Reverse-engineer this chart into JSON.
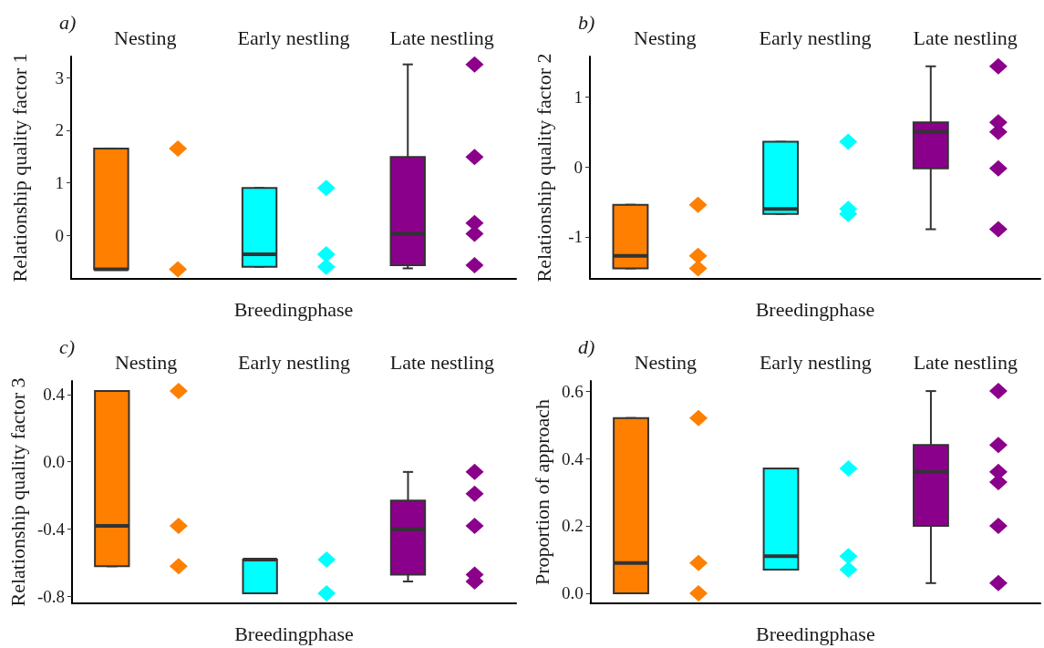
{
  "chart_data": [
    {
      "type": "box",
      "title": "a)",
      "xlabel": "Breedingphase",
      "ylabel": "Relationship quality factor 1",
      "categories": [
        "Nesting",
        "Early nestling",
        "Late nestling"
      ],
      "ylim": [
        -0.83,
        3.4
      ],
      "yticks": [
        0,
        1,
        2,
        3
      ],
      "series": [
        {
          "type": "box",
          "colors": [
            "#ff7f00",
            "#00ffff",
            "#8b008b"
          ],
          "boxes": [
            {
              "low": -0.65,
              "q1": -0.65,
              "median": -0.65,
              "q3": 1.65,
              "high": 1.65
            },
            {
              "low": -0.6,
              "q1": -0.6,
              "median": -0.36,
              "q3": 0.9,
              "high": 0.9
            },
            {
              "low": -0.63,
              "q1": -0.57,
              "median": 0.03,
              "q3": 1.49,
              "high": 3.25
            }
          ]
        },
        {
          "type": "scatter",
          "marker": "diamond",
          "x": [
            "Nesting",
            "Nesting",
            "Early nestling",
            "Early nestling",
            "Early nestling",
            "Late nestling",
            "Late nestling",
            "Late nestling",
            "Late nestling",
            "Late nestling"
          ],
          "values": [
            1.65,
            -0.65,
            0.9,
            -0.36,
            -0.6,
            3.25,
            1.49,
            0.23,
            0.03,
            -0.57
          ],
          "colors": [
            "#ff7f00",
            "#ff7f00",
            "#00ffff",
            "#00ffff",
            "#00ffff",
            "#8b008b",
            "#8b008b",
            "#8b008b",
            "#8b008b",
            "#8b008b"
          ]
        }
      ]
    },
    {
      "type": "box",
      "title": "b)",
      "xlabel": "Breedingphase",
      "ylabel": "Relationship quality factor 2",
      "categories": [
        "Nesting",
        "Early nestling",
        "Late nestling"
      ],
      "ylim": [
        -1.6,
        1.58
      ],
      "yticks": [
        -1,
        0,
        1
      ],
      "series": [
        {
          "type": "box",
          "colors": [
            "#ff7f00",
            "#00ffff",
            "#8b008b"
          ],
          "boxes": [
            {
              "low": -1.45,
              "q1": -1.45,
              "median": -1.27,
              "q3": -0.54,
              "high": -0.54
            },
            {
              "low": -0.67,
              "q1": -0.67,
              "median": -0.6,
              "q3": 0.36,
              "high": 0.36
            },
            {
              "low": -0.89,
              "q1": -0.02,
              "median": 0.5,
              "q3": 0.64,
              "high": 1.44
            }
          ]
        },
        {
          "type": "scatter",
          "marker": "diamond",
          "x": [
            "Nesting",
            "Nesting",
            "Nesting",
            "Early nestling",
            "Early nestling",
            "Early nestling",
            "Late nestling",
            "Late nestling",
            "Late nestling",
            "Late nestling",
            "Late nestling"
          ],
          "values": [
            -0.54,
            -1.27,
            -1.45,
            0.36,
            -0.6,
            -0.67,
            1.44,
            0.64,
            0.5,
            -0.02,
            -0.89
          ],
          "colors": [
            "#ff7f00",
            "#ff7f00",
            "#ff7f00",
            "#00ffff",
            "#00ffff",
            "#00ffff",
            "#8b008b",
            "#8b008b",
            "#8b008b",
            "#8b008b",
            "#8b008b"
          ]
        }
      ]
    },
    {
      "type": "box",
      "title": "c)",
      "xlabel": "Breedingphase",
      "ylabel": "Relationship quality factor 3",
      "categories": [
        "Nesting",
        "Early nestling",
        "Late nestling"
      ],
      "ylim": [
        -0.84,
        0.48
      ],
      "yticks": [
        -0.8,
        -0.4,
        {
          "value": 0,
          "label": "0.0"
        },
        0.4
      ],
      "series": [
        {
          "type": "box",
          "colors": [
            "#ff7f00",
            "#00ffff",
            "#8b008b"
          ],
          "boxes": [
            {
              "low": -0.62,
              "q1": -0.62,
              "median": -0.38,
              "q3": 0.42,
              "high": 0.42
            },
            {
              "low": -0.78,
              "q1": -0.78,
              "median": -0.58,
              "q3": -0.58,
              "high": -0.58
            },
            {
              "low": -0.71,
              "q1": -0.67,
              "median": -0.4,
              "q3": -0.23,
              "high": -0.06
            }
          ]
        },
        {
          "type": "scatter",
          "marker": "diamond",
          "x": [
            "Nesting",
            "Nesting",
            "Nesting",
            "Early nestling",
            "Early nestling",
            "Late nestling",
            "Late nestling",
            "Late nestling",
            "Late nestling",
            "Late nestling"
          ],
          "values": [
            0.42,
            -0.38,
            -0.62,
            -0.58,
            -0.78,
            -0.06,
            -0.19,
            -0.38,
            -0.67,
            -0.71
          ],
          "colors": [
            "#ff7f00",
            "#ff7f00",
            "#ff7f00",
            "#00ffff",
            "#00ffff",
            "#8b008b",
            "#8b008b",
            "#8b008b",
            "#8b008b",
            "#8b008b"
          ]
        }
      ]
    },
    {
      "type": "box",
      "title": "d)",
      "xlabel": "Breedingphase",
      "ylabel": "Proportion of approach",
      "categories": [
        "Nesting",
        "Early nestling",
        "Late nestling"
      ],
      "ylim": [
        -0.03,
        0.63
      ],
      "yticks": [
        {
          "value": 0,
          "label": "0.0"
        },
        0.2,
        0.4,
        0.6
      ],
      "series": [
        {
          "type": "box",
          "colors": [
            "#ff7f00",
            "#00ffff",
            "#8b008b"
          ],
          "boxes": [
            {
              "low": 0,
              "q1": 0,
              "median": 0.09,
              "q3": 0.52,
              "high": 0.52
            },
            {
              "low": 0.07,
              "q1": 0.07,
              "median": 0.11,
              "q3": 0.37,
              "high": 0.37
            },
            {
              "low": 0.03,
              "q1": 0.2,
              "median": 0.36,
              "q3": 0.44,
              "high": 0.6
            }
          ]
        },
        {
          "type": "scatter",
          "marker": "diamond",
          "x": [
            "Nesting",
            "Nesting",
            "Nesting",
            "Early nestling",
            "Early nestling",
            "Early nestling",
            "Late nestling",
            "Late nestling",
            "Late nestling",
            "Late nestling",
            "Late nestling",
            "Late nestling"
          ],
          "values": [
            0.52,
            0.09,
            0,
            0.37,
            0.11,
            0.07,
            0.6,
            0.44,
            0.36,
            0.33,
            0.2,
            0.03
          ],
          "colors": [
            "#ff7f00",
            "#ff7f00",
            "#ff7f00",
            "#00ffff",
            "#00ffff",
            "#00ffff",
            "#8b008b",
            "#8b008b",
            "#8b008b",
            "#8b008b",
            "#8b008b",
            "#8b008b"
          ]
        }
      ]
    }
  ]
}
